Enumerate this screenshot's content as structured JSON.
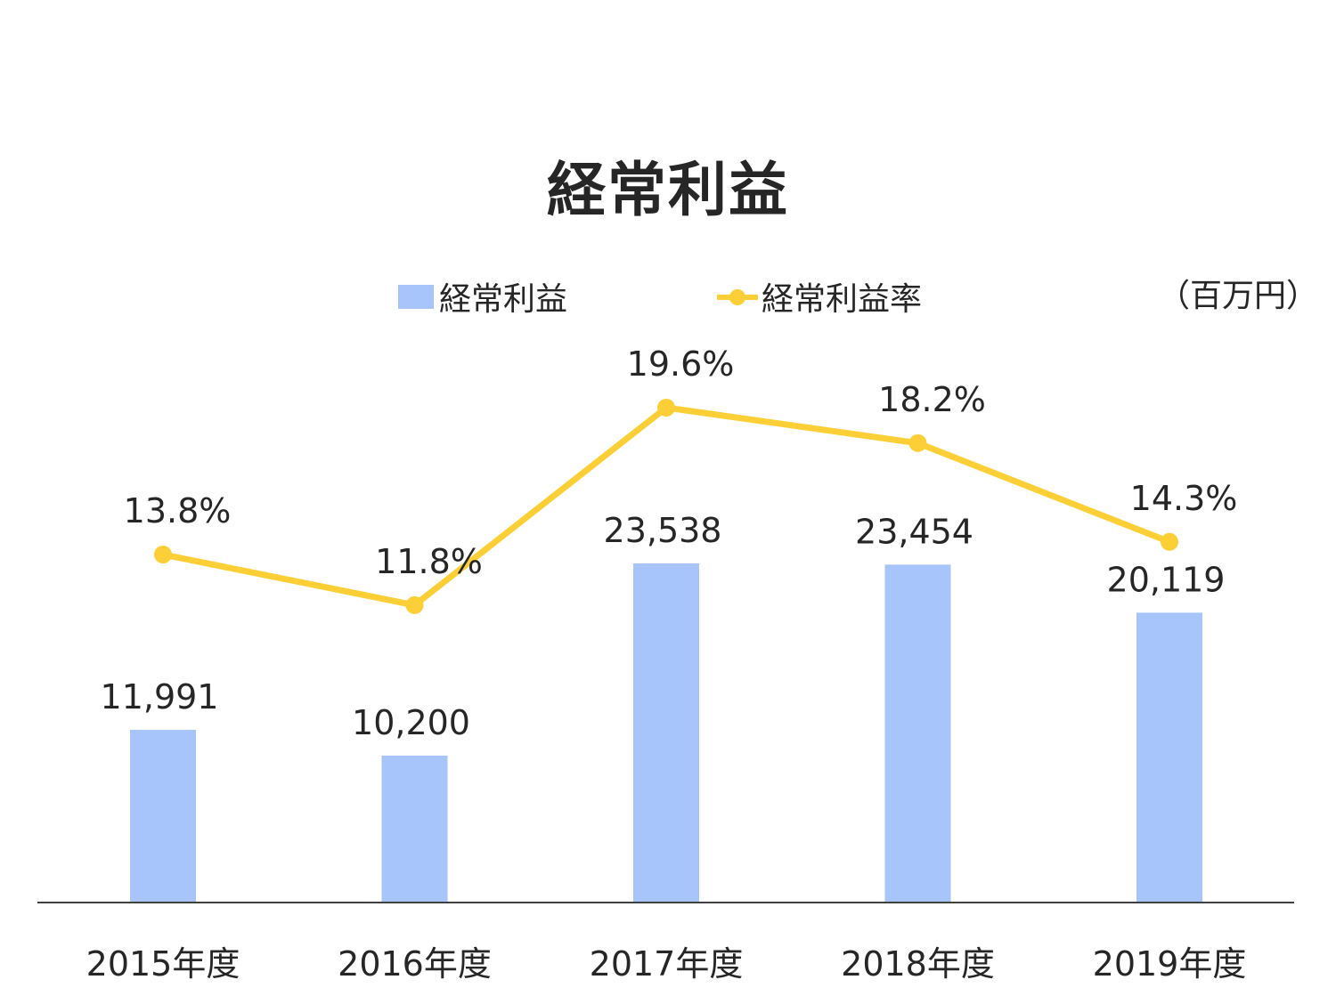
{
  "chart_data": {
    "type": "bar",
    "title": "経常利益",
    "unit": "（百万円）",
    "categories": [
      "2015年度",
      "2016年度",
      "2017年度",
      "2018年度",
      "2019年度"
    ],
    "series": [
      {
        "name": "経常利益",
        "type": "bar",
        "color": "#a8c5fb",
        "values": [
          11991,
          10200,
          23538,
          23454,
          20119
        ],
        "labels": [
          "11,991",
          "10,200",
          "23,538",
          "23,454",
          "20,119"
        ]
      },
      {
        "name": "経常利益率",
        "type": "line",
        "color": "#fdcf36",
        "values": [
          13.8,
          11.8,
          19.6,
          18.2,
          14.3
        ],
        "labels": [
          "13.8%",
          "11.8%",
          "19.6%",
          "18.2%",
          "14.3%"
        ]
      }
    ],
    "legend": "top",
    "grid": false
  }
}
